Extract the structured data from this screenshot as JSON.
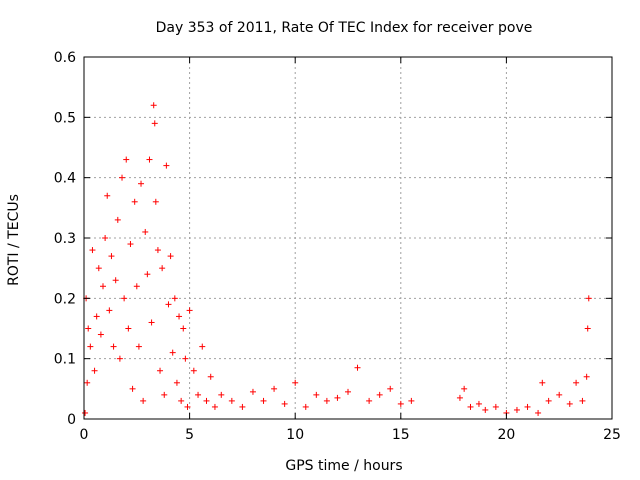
{
  "chart_data": {
    "type": "scatter",
    "title": "Day 353 of 2011, Rate Of TEC Index for receiver pove",
    "xlabel": "GPS time / hours",
    "ylabel": "ROTI / TECUs",
    "xlim": [
      0,
      25
    ],
    "ylim": [
      0,
      0.6
    ],
    "xticks": [
      0,
      5,
      10,
      15,
      20,
      25
    ],
    "yticks": [
      0,
      0.1,
      0.2,
      0.3,
      0.4,
      0.5,
      0.6
    ],
    "xtick_labels": [
      "0",
      "5",
      "10",
      "15",
      "20",
      "25"
    ],
    "ytick_labels": [
      "0",
      "0.1",
      "0.2",
      "0.3",
      "0.4",
      "0.5",
      "0.6"
    ],
    "grid": true,
    "marker": "+",
    "color": "#ff0000",
    "series": [
      {
        "name": "ROTI",
        "x": [
          0.05,
          0.1,
          0.15,
          0.2,
          0.3,
          0.4,
          0.5,
          0.6,
          0.7,
          0.8,
          0.9,
          1.0,
          1.1,
          1.2,
          1.3,
          1.4,
          1.5,
          1.6,
          1.7,
          1.8,
          1.9,
          2.0,
          2.1,
          2.2,
          2.3,
          2.4,
          2.5,
          2.6,
          2.7,
          2.8,
          2.9,
          3.0,
          3.1,
          3.2,
          3.3,
          3.35,
          3.4,
          3.5,
          3.6,
          3.7,
          3.8,
          3.9,
          4.0,
          4.1,
          4.2,
          4.3,
          4.4,
          4.5,
          4.6,
          4.7,
          4.8,
          4.9,
          5.0,
          5.2,
          5.4,
          5.6,
          5.8,
          6.0,
          6.2,
          6.5,
          7.0,
          7.5,
          8.0,
          8.5,
          9.0,
          9.5,
          10.0,
          10.5,
          11.0,
          11.5,
          12.0,
          12.5,
          12.95,
          13.5,
          14.0,
          14.5,
          15.0,
          15.5,
          17.8,
          18.0,
          18.3,
          18.7,
          19.0,
          19.5,
          20.0,
          20.5,
          21.0,
          21.5,
          21.7,
          22.0,
          22.5,
          23.0,
          23.3,
          23.6,
          23.8,
          23.85,
          23.9
        ],
        "y": [
          0.01,
          0.2,
          0.06,
          0.15,
          0.12,
          0.28,
          0.08,
          0.17,
          0.25,
          0.14,
          0.22,
          0.3,
          0.37,
          0.18,
          0.27,
          0.12,
          0.23,
          0.33,
          0.1,
          0.4,
          0.2,
          0.43,
          0.15,
          0.29,
          0.05,
          0.36,
          0.22,
          0.12,
          0.39,
          0.03,
          0.31,
          0.24,
          0.43,
          0.16,
          0.52,
          0.49,
          0.36,
          0.28,
          0.08,
          0.25,
          0.04,
          0.42,
          0.19,
          0.27,
          0.11,
          0.2,
          0.06,
          0.17,
          0.03,
          0.15,
          0.1,
          0.02,
          0.18,
          0.08,
          0.04,
          0.12,
          0.03,
          0.07,
          0.02,
          0.04,
          0.03,
          0.02,
          0.045,
          0.03,
          0.05,
          0.025,
          0.06,
          0.02,
          0.04,
          0.03,
          0.035,
          0.045,
          0.085,
          0.03,
          0.04,
          0.05,
          0.025,
          0.03,
          0.035,
          0.05,
          0.02,
          0.025,
          0.015,
          0.02,
          0.01,
          0.015,
          0.02,
          0.01,
          0.06,
          0.03,
          0.04,
          0.025,
          0.06,
          0.03,
          0.07,
          0.15,
          0.2
        ]
      }
    ]
  }
}
